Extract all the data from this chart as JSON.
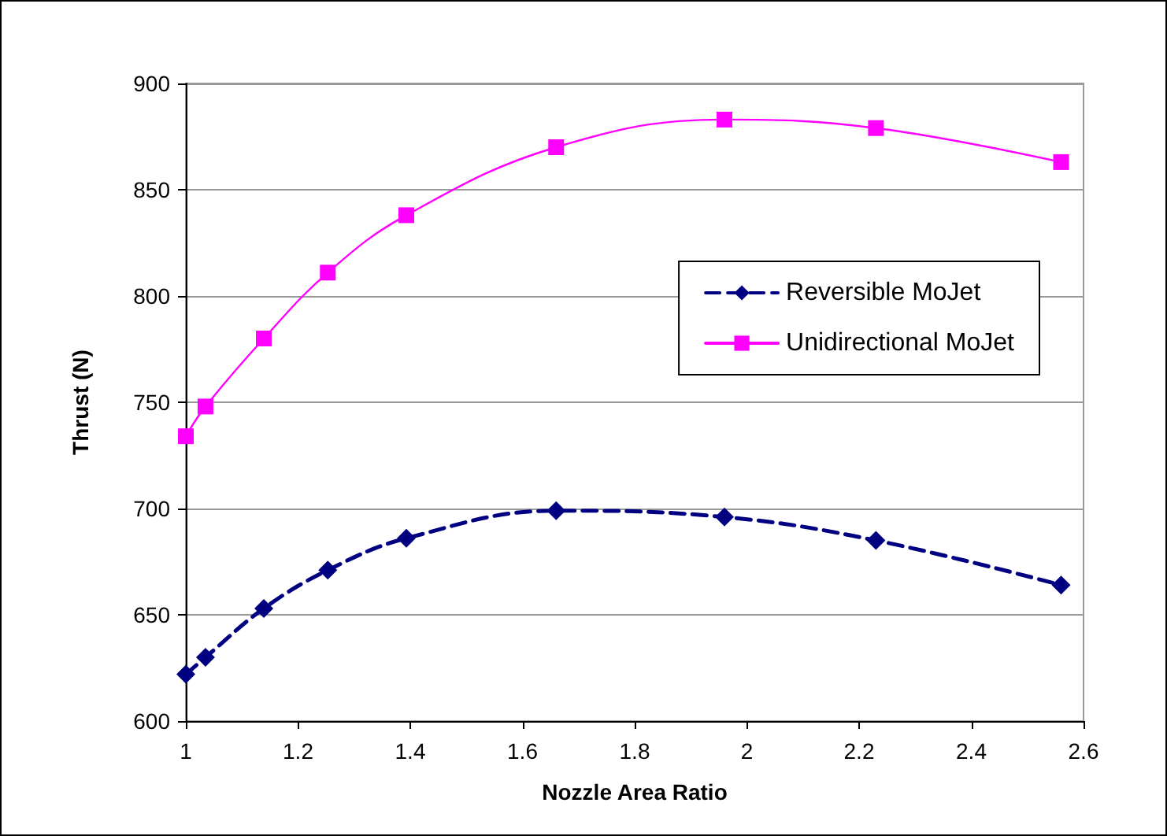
{
  "chart_data": {
    "type": "line",
    "xlabel": "Nozzle Area Ratio",
    "ylabel": "Thrust (N)",
    "x": [
      1.0,
      1.035,
      1.139,
      1.253,
      1.393,
      1.66,
      1.96,
      2.23,
      2.56
    ],
    "series": [
      {
        "name": "Reversible MoJet",
        "color": "#000080",
        "values": [
          622,
          630,
          653,
          671,
          686,
          699,
          696,
          685,
          664
        ],
        "marker": "diamond",
        "line_style": "dashed"
      },
      {
        "name": "Unidirectional MoJet",
        "color": "#ff00ff",
        "values": [
          734,
          748,
          780,
          811,
          838,
          870,
          883,
          879,
          863
        ],
        "marker": "square",
        "line_style": "solid"
      }
    ],
    "xlim": [
      1,
      2.6
    ],
    "xticks": [
      1,
      1.2,
      1.4,
      1.6,
      1.8,
      2,
      2.2,
      2.4,
      2.6
    ],
    "ylim": [
      600,
      900
    ],
    "yticks": [
      600,
      650,
      700,
      750,
      800,
      850,
      900
    ],
    "grid": "y",
    "legend": "right"
  }
}
